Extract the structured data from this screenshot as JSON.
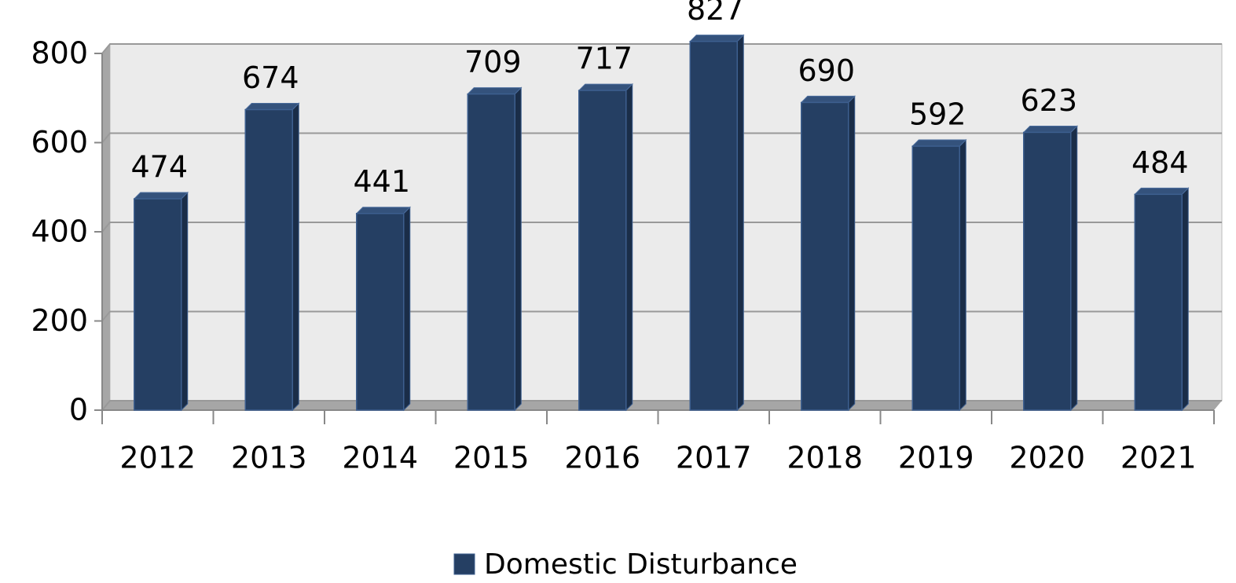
{
  "chart_data": {
    "type": "bar",
    "categories": [
      "2012",
      "2013",
      "2014",
      "2015",
      "2016",
      "2017",
      "2018",
      "2019",
      "2020",
      "2021"
    ],
    "series": [
      {
        "name": "Domestic Disturbance",
        "color": "#253f63",
        "values": [
          474,
          674,
          441,
          709,
          717,
          827,
          690,
          592,
          623,
          484
        ]
      }
    ],
    "ylim": [
      0,
      800
    ],
    "yticks": [
      0,
      200,
      400,
      600,
      800
    ],
    "grid": true,
    "legend": "bottom"
  }
}
